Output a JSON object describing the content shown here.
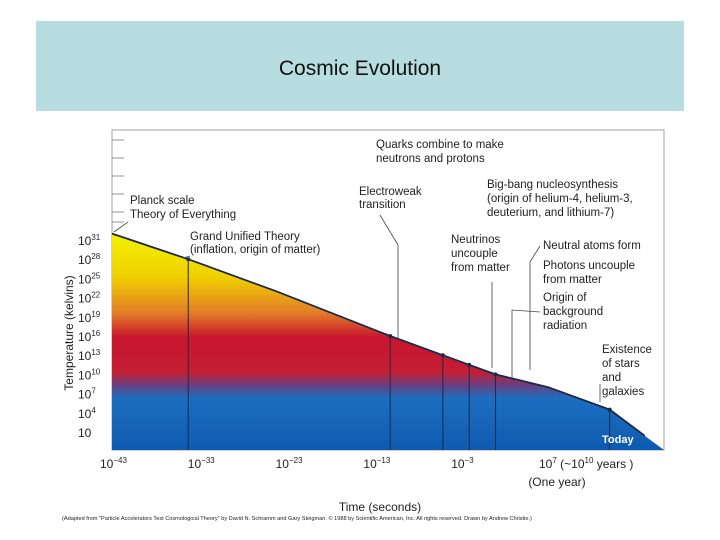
{
  "slide": {
    "title": "Cosmic Evolution"
  },
  "chart_data": {
    "type": "line",
    "xlabel": "Time (seconds)",
    "ylabel": "Temperature (kelvins)",
    "x_tick_labels": [
      "10−43",
      "10−33",
      "10−23",
      "10−13",
      "10−3",
      "107 (~1010 years )"
    ],
    "x_ticks": [
      {
        "base": "10",
        "exp": "−43"
      },
      {
        "base": "10",
        "exp": "−33"
      },
      {
        "base": "10",
        "exp": "−23"
      },
      {
        "base": "10",
        "exp": "−13"
      },
      {
        "base": "10",
        "exp": "−3"
      },
      {
        "base": "10",
        "exp": "7",
        "suffix": " (~10",
        "exp2": "10",
        "suffix2": " years )"
      }
    ],
    "x_sub_label": "(One year)",
    "y_ticks": [
      {
        "base": "10",
        "exp": "31"
      },
      {
        "base": "10",
        "exp": "28"
      },
      {
        "base": "10",
        "exp": "25"
      },
      {
        "base": "10",
        "exp": "22"
      },
      {
        "base": "10",
        "exp": "19"
      },
      {
        "base": "10",
        "exp": "16"
      },
      {
        "base": "10",
        "exp": "13"
      },
      {
        "base": "10",
        "exp": "10"
      },
      {
        "base": "10",
        "exp": "7"
      },
      {
        "base": "10",
        "exp": "4"
      },
      {
        "base": "10",
        "exp": ""
      }
    ],
    "x_log_range": [
      -43,
      17
    ],
    "series": [
      {
        "points": [
          {
            "log_t": -43,
            "log_T": 32.0
          },
          {
            "log_t": -35,
            "log_T": 28.0
          },
          {
            "log_t": -25,
            "log_T": 23.0
          },
          {
            "log_t": -12,
            "log_T": 16.0
          },
          {
            "log_t": -6,
            "log_T": 13.0
          },
          {
            "log_t": -3,
            "log_T": 11.5
          },
          {
            "log_t": 0,
            "log_T": 10.0
          },
          {
            "log_t": 6,
            "log_T": 8.0
          },
          {
            "log_t": 13,
            "log_T": 4.5
          },
          {
            "log_t": 17,
            "log_T": 0.4
          }
        ]
      }
    ],
    "annotations": [
      {
        "lines": [
          "Planck scale",
          "Theory of Everything"
        ]
      },
      {
        "lines": [
          "Grand Unified Theory",
          "(inflation, origin of matter)"
        ]
      },
      {
        "lines": [
          "Quarks combine to make",
          "neutrons and protons"
        ]
      },
      {
        "lines": [
          "Electroweak",
          "transition"
        ]
      },
      {
        "lines": [
          "Big-bang nucleosynthesis",
          "(origin of helium-4, helium-3,",
          "deuterium, and lithium-7)"
        ]
      },
      {
        "lines": [
          "Neutrinos",
          "uncouple",
          "from matter"
        ]
      },
      {
        "lines": [
          "Neutral atoms form"
        ]
      },
      {
        "lines": [
          "Photons uncouple",
          "from matter"
        ]
      },
      {
        "lines": [
          "Origin of",
          "background",
          "radiation"
        ]
      },
      {
        "lines": [
          "Existence",
          "of stars",
          "and",
          "galaxies"
        ]
      }
    ],
    "today_label": "Today",
    "credit": "(Adapted from \"Particle Accelerators Test Cosmological Theory\" by David N. Schramm and Gary Steigman. © 1988 by Scientific American, Inc. All rights reserved. Drawn by Andrew Christie.)",
    "colors": {
      "hot": "#f2f000",
      "mid": "#e6a020",
      "red": "#c8102e",
      "blue": "#1466b8",
      "line": "#1a2a4a"
    }
  }
}
